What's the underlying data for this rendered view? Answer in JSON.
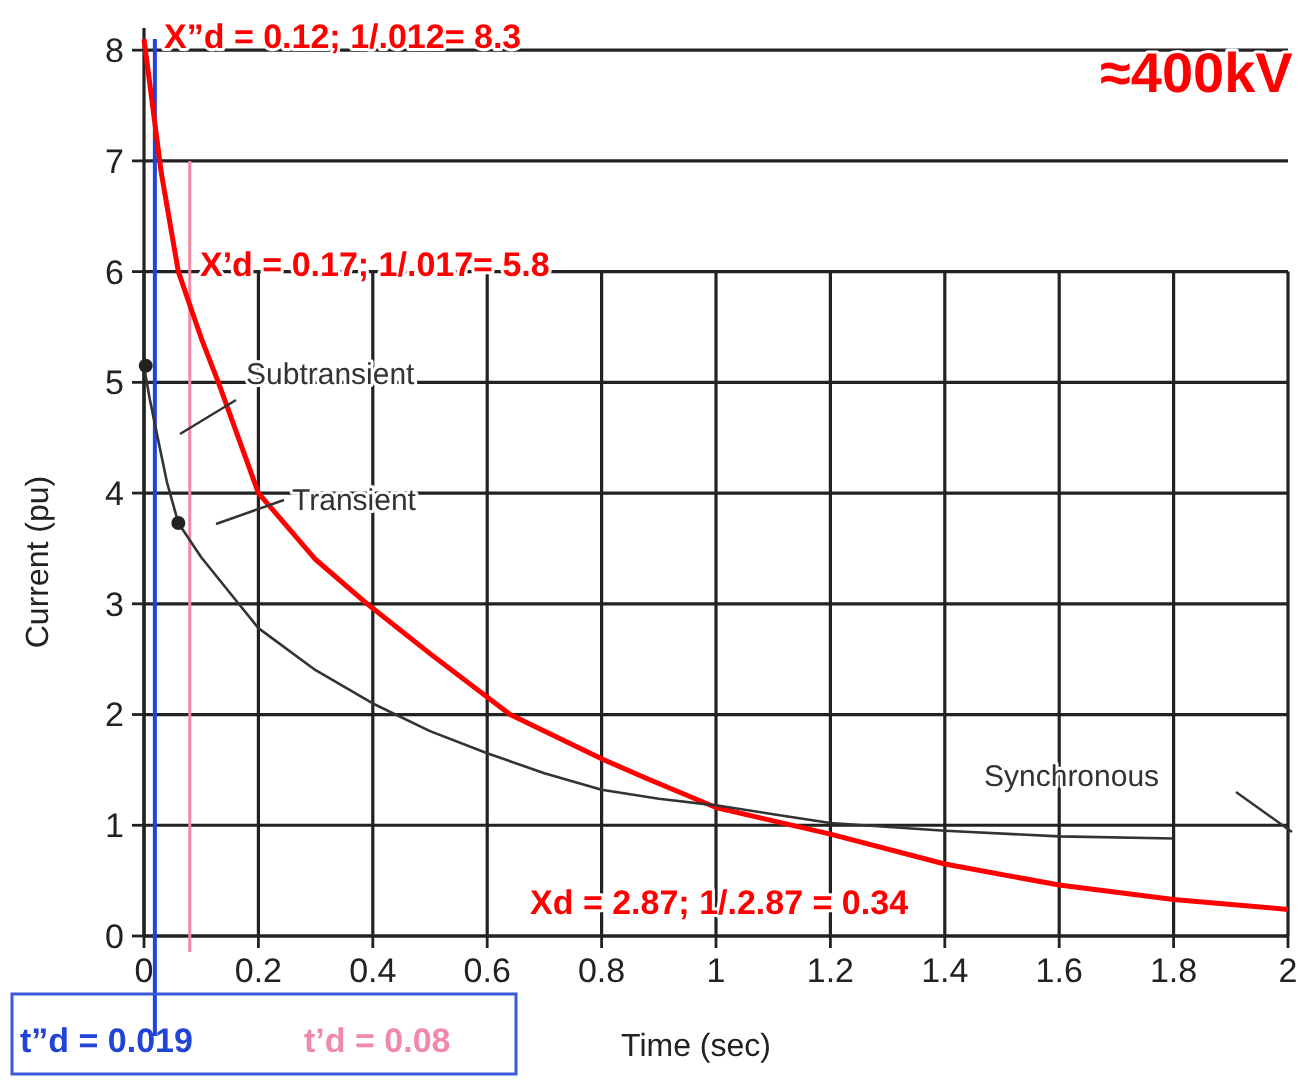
{
  "chart_data": {
    "type": "line",
    "xlabel": "Time (sec)",
    "ylabel": "Current (pu)",
    "xlim": [
      0,
      2
    ],
    "ylim": [
      0,
      8.2
    ],
    "xticks": [
      0,
      0.2,
      0.4,
      0.6,
      0.8,
      1,
      1.2,
      1.4,
      1.6,
      1.8,
      2
    ],
    "yticks": [
      0,
      1,
      2,
      3,
      4,
      5,
      6,
      7,
      8
    ],
    "grid": true,
    "line_style": "solid",
    "series": [
      {
        "color": "#ff0000",
        "x": [
          0,
          0.03,
          0.06,
          0.1,
          0.13,
          0.2,
          0.3,
          0.39,
          0.5,
          0.64,
          0.8,
          0.88,
          1,
          1.2,
          1.4,
          1.6,
          1.8,
          2
        ],
        "values": [
          8.1,
          6.9,
          6,
          5.4,
          5,
          4,
          3.4,
          3,
          2.55,
          2,
          1.6,
          1.42,
          1.16,
          0.92,
          0.65,
          0.46,
          0.33,
          0.24
        ]
      },
      {
        "color": "#333333",
        "x": [
          0,
          0.01,
          0.02,
          0.04,
          0.06,
          0.1,
          0.15,
          0.2,
          0.3,
          0.4,
          0.5,
          0.6,
          0.7,
          0.8,
          0.9,
          1,
          1.1,
          1.2,
          1.4,
          1.6,
          1.8
        ],
        "values": [
          5.15,
          4.85,
          4.6,
          4.1,
          3.73,
          3.42,
          3.1,
          2.78,
          2.4,
          2.1,
          1.85,
          1.65,
          1.47,
          1.32,
          1.24,
          1.18,
          1.1,
          1.02,
          0.95,
          0.9,
          0.88
        ]
      },
      {
        "type": "scatter",
        "marker": "circle",
        "color": "#222222",
        "x": [
          0.003,
          0.06
        ],
        "values": [
          5.15,
          3.73
        ]
      }
    ],
    "ref_lines": [
      {
        "axis": "x",
        "value": 0.019,
        "label": "t”d = 0.019",
        "color": "#1f44d6"
      },
      {
        "axis": "x",
        "value": 0.08,
        "label": "t’d = 0.08",
        "color": "#f08aa8"
      }
    ],
    "annotations": [
      "X”d = 0.12; 1/.012= 8.3",
      "X’d = 0.17; 1/.017= 5.8",
      "Xd = 2.87; 1/.2.87 = 0.34",
      "Subtransient",
      "Transient",
      "Synchronous",
      "≈400kV"
    ]
  }
}
